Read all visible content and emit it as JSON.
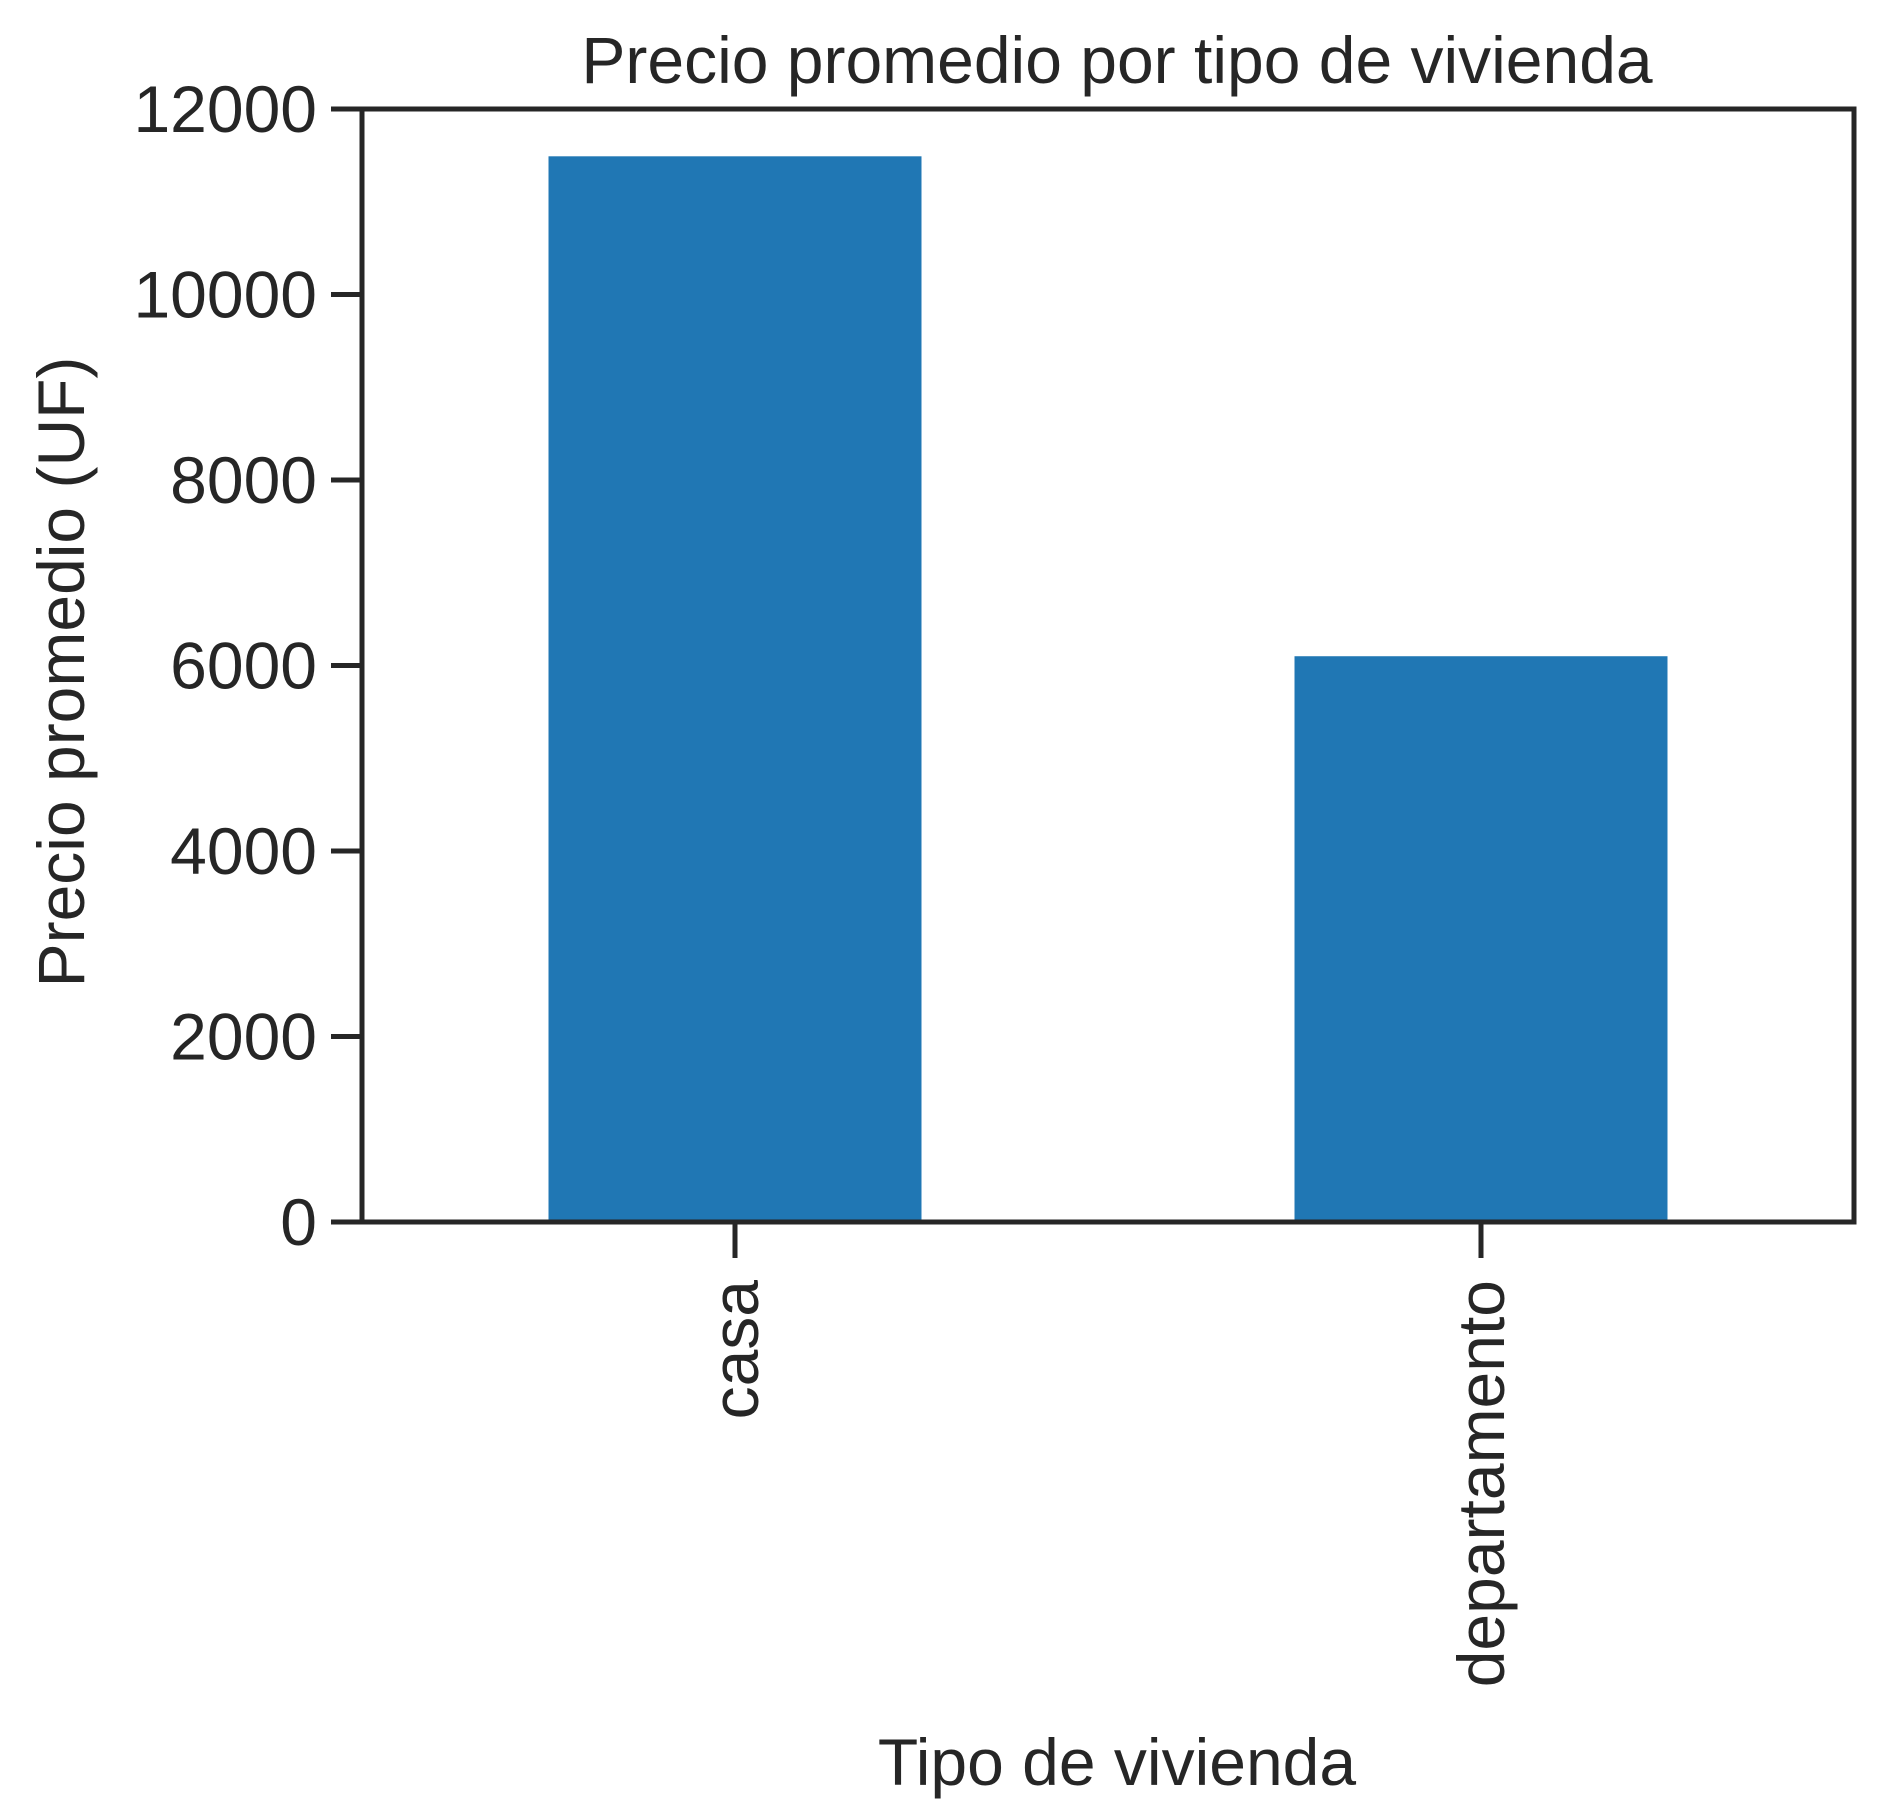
{
  "chart_data": {
    "type": "bar",
    "title": "Precio promedio por tipo de vivienda",
    "xlabel": "Tipo de vivienda",
    "ylabel": "Precio promedio (UF)",
    "categories": [
      "casa",
      "departamento"
    ],
    "values": [
      11490,
      6100
    ],
    "ylim": [
      0,
      12000
    ],
    "yticks": [
      "0",
      "2000",
      "4000",
      "6000",
      "8000",
      "10000",
      "12000"
    ],
    "grid": false,
    "legend": "none",
    "colors": {
      "bar": "#2077b4",
      "axes": "#262626",
      "text": "#262626",
      "background": "#ffffff"
    }
  }
}
